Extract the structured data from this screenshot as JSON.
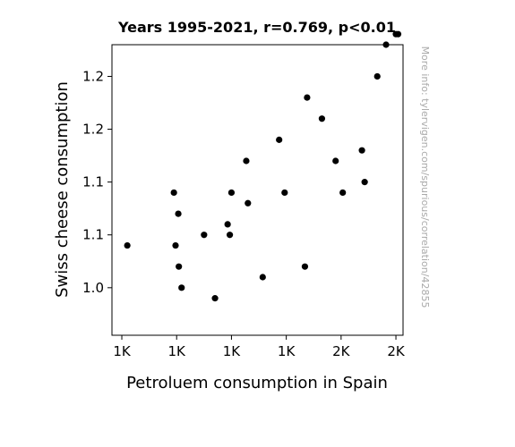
{
  "chart_data": {
    "type": "scatter",
    "title": "Years 1995-2021, r=0.769, p<0.01",
    "xlabel": "Petroluem consumption in Spain",
    "ylabel": "Swiss cheese consumption",
    "xlim": [
      1082,
      1613
    ],
    "ylim": [
      0.955,
      1.23
    ],
    "x_ticks": [
      {
        "value": 1100,
        "label": "1K"
      },
      {
        "value": 1200,
        "label": "1K"
      },
      {
        "value": 1300,
        "label": "1K"
      },
      {
        "value": 1400,
        "label": "1K"
      },
      {
        "value": 1500,
        "label": "2K"
      },
      {
        "value": 1600,
        "label": "2K"
      }
    ],
    "y_ticks": [
      {
        "value": 1.0,
        "label": "1.0"
      },
      {
        "value": 1.05,
        "label": "1.1"
      },
      {
        "value": 1.1,
        "label": "1.1"
      },
      {
        "value": 1.15,
        "label": "1.2"
      },
      {
        "value": 1.2,
        "label": "1.2"
      }
    ],
    "grid": false,
    "marker_color": "#000000",
    "points": [
      {
        "x": 1110,
        "y": 1.04
      },
      {
        "x": 1195,
        "y": 1.09
      },
      {
        "x": 1198,
        "y": 1.04
      },
      {
        "x": 1203,
        "y": 1.07
      },
      {
        "x": 1204,
        "y": 1.02
      },
      {
        "x": 1209,
        "y": 1.0
      },
      {
        "x": 1250,
        "y": 1.05
      },
      {
        "x": 1270,
        "y": 0.99
      },
      {
        "x": 1293,
        "y": 1.06
      },
      {
        "x": 1297,
        "y": 1.05
      },
      {
        "x": 1300,
        "y": 1.09
      },
      {
        "x": 1327,
        "y": 1.12
      },
      {
        "x": 1330,
        "y": 1.08
      },
      {
        "x": 1357,
        "y": 1.01
      },
      {
        "x": 1387,
        "y": 1.14
      },
      {
        "x": 1397,
        "y": 1.09
      },
      {
        "x": 1434,
        "y": 1.02
      },
      {
        "x": 1438,
        "y": 1.18
      },
      {
        "x": 1465,
        "y": 1.16
      },
      {
        "x": 1490,
        "y": 1.12
      },
      {
        "x": 1503,
        "y": 1.09
      },
      {
        "x": 1538,
        "y": 1.13
      },
      {
        "x": 1543,
        "y": 1.1
      },
      {
        "x": 1566,
        "y": 1.2
      },
      {
        "x": 1582,
        "y": 1.23
      },
      {
        "x": 1600,
        "y": 1.24
      },
      {
        "x": 1604,
        "y": 1.24
      }
    ],
    "watermark": "More info: tylervigen.com/spurious/correlation/42855"
  }
}
